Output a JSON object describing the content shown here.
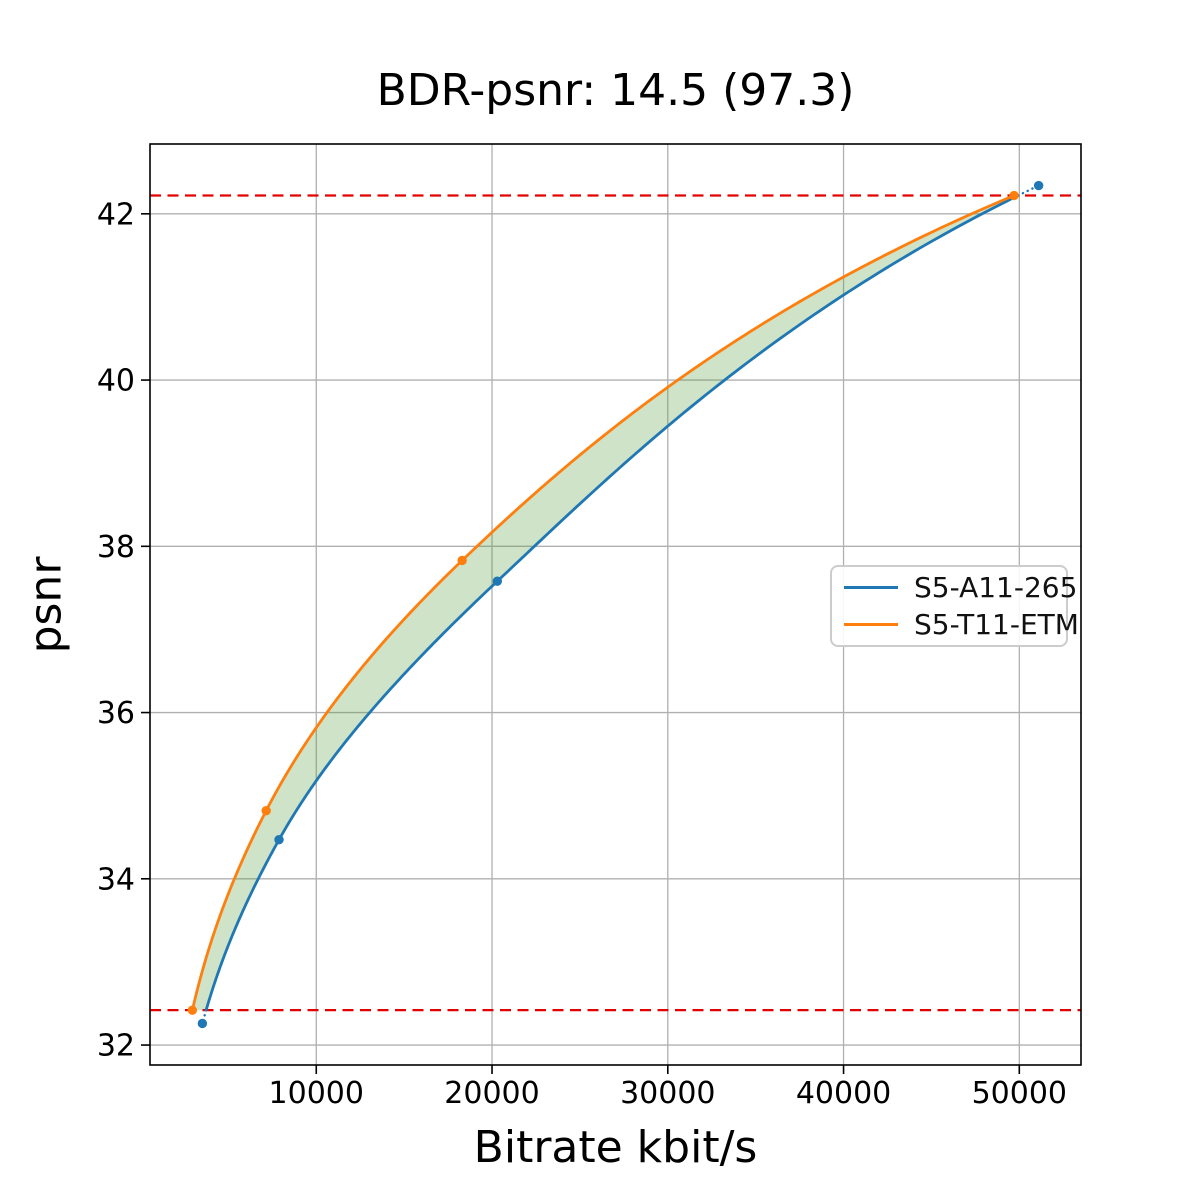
{
  "chart_data": {
    "type": "line",
    "title": "BDR-psnr: 14.5 (97.3)",
    "xlabel": "Bitrate kbit/s",
    "ylabel": "psnr",
    "xlim": [
      540,
      53510
    ],
    "ylim": [
      31.76,
      42.84
    ],
    "x_ticks": [
      10000,
      20000,
      30000,
      40000,
      50000
    ],
    "y_ticks": [
      32,
      34,
      36,
      38,
      40,
      42
    ],
    "grid": true,
    "grid_color": "#b0b0b0",
    "spine_color": "#000000",
    "legend_position": "center right",
    "series": [
      {
        "name": "S5-A11-265",
        "color": "#1f77b4",
        "points": [
          [
            3520,
            32.26
          ],
          [
            7880,
            34.47
          ],
          [
            20300,
            37.58
          ],
          [
            51100,
            42.34
          ]
        ]
      },
      {
        "name": "S5-T11-ETM",
        "color": "#ff7f0e",
        "points": [
          [
            2950,
            32.42
          ],
          [
            7150,
            34.82
          ],
          [
            18300,
            37.83
          ],
          [
            49700,
            42.22
          ]
        ]
      }
    ],
    "overlap_lines": {
      "color": "#e50000",
      "low": 32.42,
      "high": 42.22
    },
    "fill_between": {
      "color": "#4e9b35",
      "opacity": 0.28
    }
  }
}
